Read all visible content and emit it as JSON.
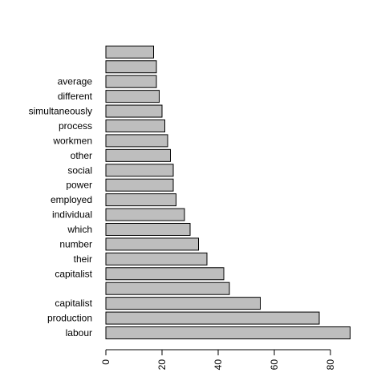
{
  "chart_data": {
    "type": "bar",
    "orientation": "horizontal",
    "categories": [
      "labour",
      "production",
      "capitalist",
      "",
      "capitalist",
      "their",
      "number",
      "which",
      "individual",
      "employed",
      "power",
      "social",
      "other",
      "workmen",
      "process",
      "simultaneously",
      "different",
      "average",
      "",
      ""
    ],
    "values": [
      87,
      76,
      55,
      44,
      42,
      36,
      33,
      30,
      28,
      25,
      24,
      24,
      23,
      22,
      21,
      20,
      19,
      18,
      18,
      17
    ],
    "xlim": [
      0,
      87
    ],
    "xticks": [
      "0",
      "20",
      "40",
      "60",
      "80"
    ],
    "bar_color": "#bebebe",
    "edge_color": "#000000",
    "grid": false,
    "title": "",
    "xlabel": "",
    "ylabel": ""
  }
}
